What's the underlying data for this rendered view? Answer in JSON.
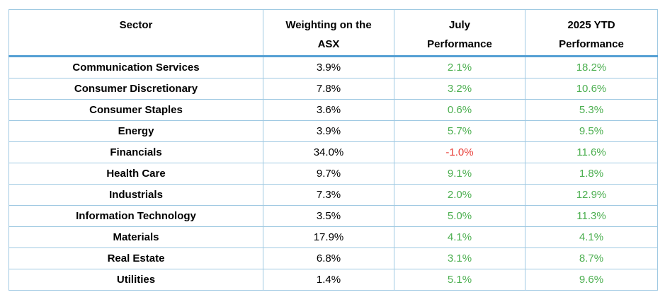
{
  "colors": {
    "border": "#9fc9e2",
    "header_rule": "#55a0d4",
    "positive": "#4caf50",
    "negative": "#e8403a",
    "text": "#000000",
    "background": "#ffffff"
  },
  "table": {
    "header_lines": [
      {
        "line1": "Sector",
        "line2": ""
      },
      {
        "line1": "Weighting on the",
        "line2": "ASX"
      },
      {
        "line1": "July",
        "line2": "Performance"
      },
      {
        "line1": "2025 YTD",
        "line2": "Performance"
      }
    ]
  },
  "chart_data": {
    "type": "table",
    "title": "",
    "columns": [
      "Sector",
      "Weighting on the ASX",
      "July Performance",
      "2025 YTD Performance"
    ],
    "rows": [
      [
        "Communication Services",
        "3.9%",
        "2.1%",
        "18.2%"
      ],
      [
        "Consumer Discretionary",
        "7.8%",
        "3.2%",
        "10.6%"
      ],
      [
        "Consumer Staples",
        "3.6%",
        "0.6%",
        "5.3%"
      ],
      [
        "Energy",
        "3.9%",
        "5.7%",
        "9.5%"
      ],
      [
        "Financials",
        "34.0%",
        "-1.0%",
        "11.6%"
      ],
      [
        "Health Care",
        "9.7%",
        "9.1%",
        "1.8%"
      ],
      [
        "Industrials",
        "7.3%",
        "2.0%",
        "12.9%"
      ],
      [
        "Information Technology",
        "3.5%",
        "5.0%",
        "11.3%"
      ],
      [
        "Materials",
        "17.9%",
        "4.1%",
        "4.1%"
      ],
      [
        "Real Estate",
        "6.8%",
        "3.1%",
        "8.7%"
      ],
      [
        "Utilities",
        "1.4%",
        "5.1%",
        "9.6%"
      ]
    ],
    "value_color_rule": "July Performance and 2025 YTD Performance cells are green when positive, red when negative"
  }
}
